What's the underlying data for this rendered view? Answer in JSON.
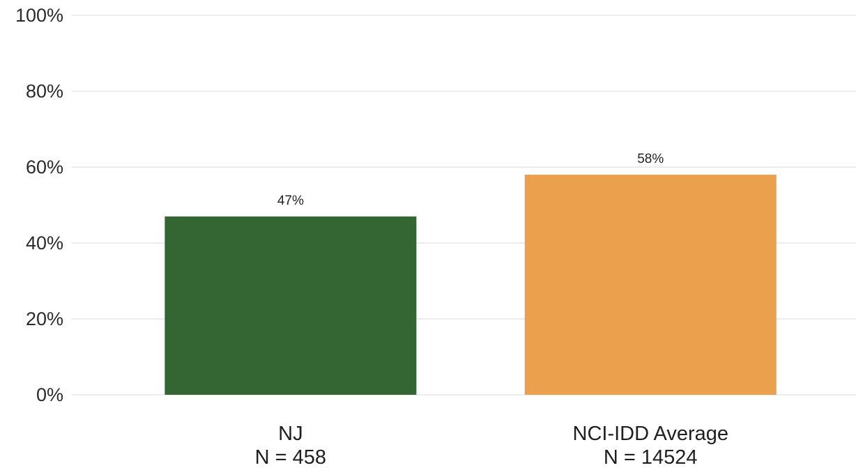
{
  "chart_data": {
    "type": "bar",
    "categories": [
      "NJ",
      "NCI-IDD Average"
    ],
    "category_sublabels": [
      "N = 458",
      "N = 14524"
    ],
    "values": [
      47,
      58
    ],
    "data_labels": [
      "47%",
      "58%"
    ],
    "bar_colors": [
      "#336633",
      "#EBA04D"
    ],
    "title": "",
    "xlabel": "",
    "ylabel": "",
    "ylim": [
      0,
      100
    ],
    "yticks": [
      0,
      20,
      40,
      60,
      80,
      100
    ],
    "ytick_labels": [
      "0%",
      "20%",
      "40%",
      "60%",
      "80%",
      "100%"
    ],
    "grid": true,
    "legend": "none"
  },
  "colors": {
    "gridline": "#E6E6E6",
    "text": "#2B2B2B"
  }
}
